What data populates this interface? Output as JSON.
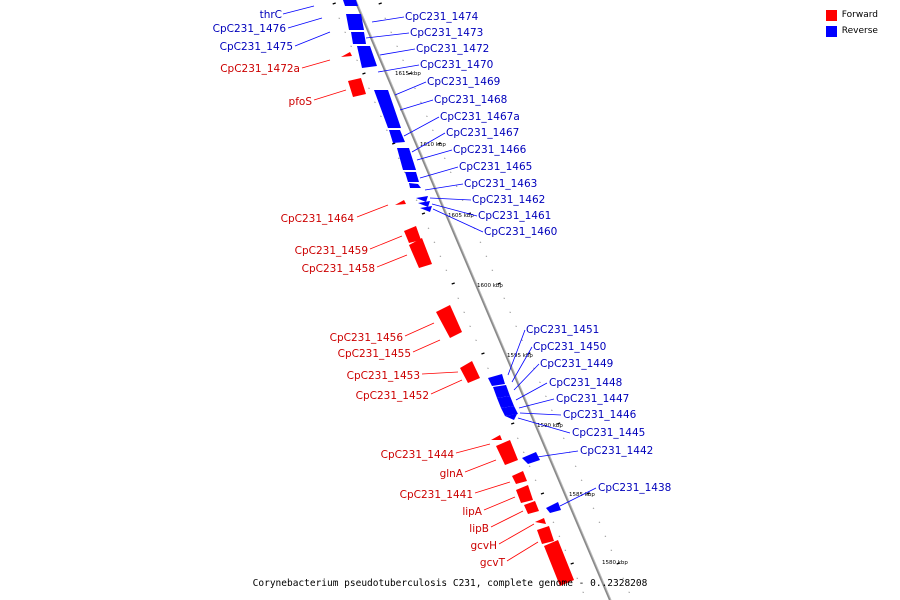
{
  "colors": {
    "forward": "#ff0000",
    "reverse": "#0000ff",
    "backbone": "#888888"
  },
  "legend": {
    "forward": "Forward",
    "reverse": "Reverse"
  },
  "caption": "Corynebacterium pseudotuberculosis C231, complete genome - 0..2328208",
  "ticks": [
    "1615 kbp",
    "1610 kbp",
    "1605 kbp",
    "1600 kbp",
    "1595 kbp",
    "1590 kbp",
    "1585 kbp",
    "1580 kbp"
  ],
  "reverse_genes": [
    "CpC231_1474",
    "CpC231_1473",
    "CpC231_1472",
    "CpC231_1470",
    "CpC231_1469",
    "CpC231_1468",
    "CpC231_1467a",
    "CpC231_1467",
    "CpC231_1466",
    "CpC231_1465",
    "CpC231_1463",
    "CpC231_1462",
    "CpC231_1461",
    "CpC231_1460",
    "CpC231_1451",
    "CpC231_1450",
    "CpC231_1449",
    "CpC231_1448",
    "CpC231_1447",
    "CpC231_1446",
    "CpC231_1445",
    "CpC231_1442",
    "CpC231_1438"
  ],
  "forward_genes": [
    "CpC231_1472a",
    "pfoS",
    "CpC231_1464",
    "CpC231_1459",
    "CpC231_1458",
    "CpC231_1456",
    "CpC231_1455",
    "CpC231_1453",
    "CpC231_1452",
    "CpC231_1444",
    "glnA",
    "CpC231_1441",
    "lipA",
    "lipB",
    "gcvH",
    "gcvT"
  ],
  "reverse_left_genes": [
    "thrC",
    "CpC231_1476",
    "CpC231_1475"
  ]
}
